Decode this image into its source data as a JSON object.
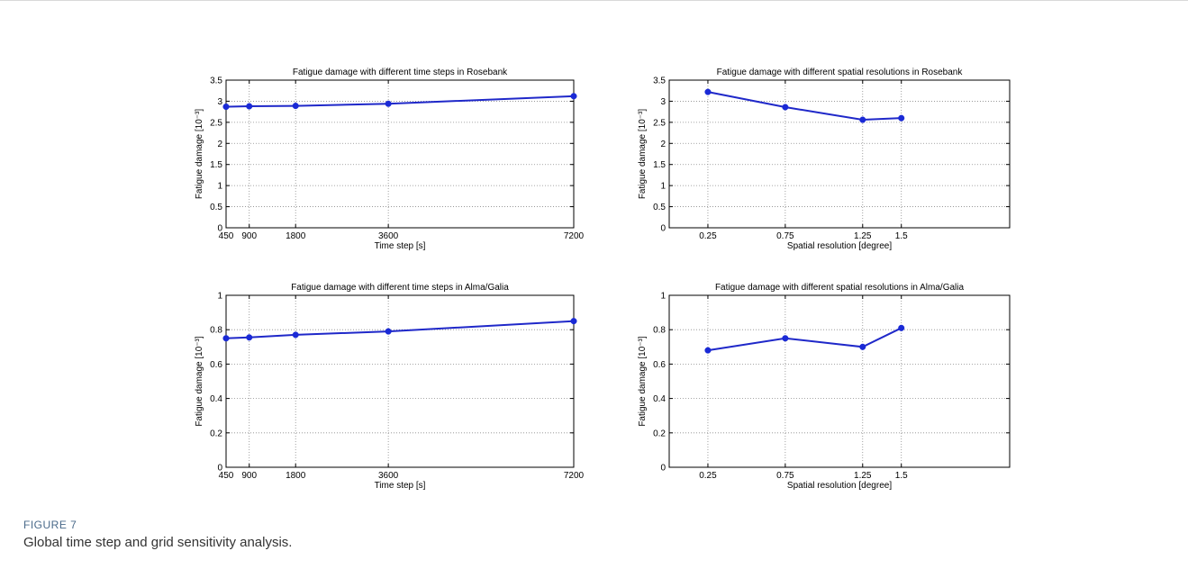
{
  "figure": {
    "label": "FIGURE 7",
    "caption": "Global time step and grid sensitivity analysis."
  },
  "colors": {
    "series": "#1f28c9",
    "marker": "#1a2ad6"
  },
  "chart_data": [
    {
      "type": "line",
      "title": "Fatigue damage with different time steps in Rosebank",
      "xlabel": "Time step [s]",
      "ylabel": "Fatigue damage [10⁻³]",
      "x": [
        450,
        900,
        1800,
        3600,
        7200
      ],
      "xticks": [
        "450",
        "900",
        "1800",
        "3600",
        "7200"
      ],
      "xlim": [
        450,
        7200
      ],
      "ylim": [
        0,
        3.5
      ],
      "yticks": [
        "0",
        "0.5",
        "1",
        "1.5",
        "2",
        "2.5",
        "3",
        "3.5"
      ],
      "grid": true,
      "series": [
        {
          "values": [
            2.87,
            2.88,
            2.89,
            2.94,
            3.12
          ]
        }
      ]
    },
    {
      "type": "line",
      "title": "Fatigue damage with different spatial resolutions in Rosebank",
      "xlabel": "Spatial resolution [degree]",
      "ylabel": "Fatigue damage [10⁻³]",
      "x": [
        0.25,
        0.75,
        1.25,
        1.5
      ],
      "xticks": [
        "0.25",
        "0.75",
        "1.25",
        "1.5"
      ],
      "xlim": [
        0,
        2.2
      ],
      "ylim": [
        0,
        3.5
      ],
      "yticks": [
        "0",
        "0.5",
        "1",
        "1.5",
        "2",
        "2.5",
        "3",
        "3.5"
      ],
      "grid": true,
      "series": [
        {
          "values": [
            3.22,
            2.86,
            2.56,
            2.6
          ]
        }
      ]
    },
    {
      "type": "line",
      "title": "Fatigue damage with different time steps in Alma/Galia",
      "xlabel": "Time step [s]",
      "ylabel": "Fatigue damage [10⁻³]",
      "x": [
        450,
        900,
        1800,
        3600,
        7200
      ],
      "xticks": [
        "450",
        "900",
        "1800",
        "3600",
        "7200"
      ],
      "xlim": [
        450,
        7200
      ],
      "ylim": [
        0,
        1
      ],
      "yticks": [
        "0",
        "0.2",
        "0.4",
        "0.6",
        "0.8",
        "1"
      ],
      "grid": true,
      "series": [
        {
          "values": [
            0.75,
            0.755,
            0.77,
            0.79,
            0.85
          ]
        }
      ]
    },
    {
      "type": "line",
      "title": "Fatigue damage with different spatial resolutions in Alma/Galia",
      "xlabel": "Spatial resolution [degree]",
      "ylabel": "Fatigue damage [10⁻³]",
      "x": [
        0.25,
        0.75,
        1.25,
        1.5
      ],
      "xticks": [
        "0.25",
        "0.75",
        "1.25",
        "1.5"
      ],
      "xlim": [
        0,
        2.2
      ],
      "ylim": [
        0,
        1
      ],
      "yticks": [
        "0",
        "0.2",
        "0.4",
        "0.6",
        "0.8",
        "1"
      ],
      "grid": true,
      "series": [
        {
          "values": [
            0.68,
            0.75,
            0.7,
            0.81
          ]
        }
      ]
    }
  ]
}
